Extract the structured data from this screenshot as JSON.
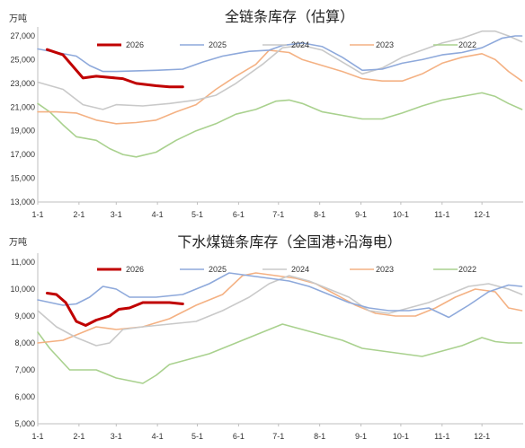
{
  "colors": {
    "2026": "#C00000",
    "2025": "#8EA9DB",
    "2024": "#C9C9C9",
    "2023": "#F4B183",
    "2022": "#A9D18E"
  },
  "chart_data": [
    {
      "type": "line",
      "title": "全链条库存（估算）",
      "unit_label": "万吨",
      "xlabel": "",
      "ylabel": "",
      "ylim": [
        13000,
        27000
      ],
      "xlim": [
        1,
        366
      ],
      "grid": false,
      "legend_position": "top",
      "x_ticks": [
        {
          "label": "1-1",
          "day": 1
        },
        {
          "label": "2-1",
          "day": 32
        },
        {
          "label": "3-1",
          "day": 60
        },
        {
          "label": "4-1",
          "day": 91
        },
        {
          "label": "5-1",
          "day": 121
        },
        {
          "label": "6-1",
          "day": 152
        },
        {
          "label": "7-1",
          "day": 182
        },
        {
          "label": "8-1",
          "day": 213
        },
        {
          "label": "9-1",
          "day": 244
        },
        {
          "label": "10-1",
          "day": 274
        },
        {
          "label": "11-1",
          "day": 305
        },
        {
          "label": "12-1",
          "day": 335
        }
      ],
      "y_ticks": [
        "13,000",
        "15,000",
        "17,000",
        "19,000",
        "21,000",
        "23,000",
        "25,000",
        "27,000"
      ],
      "y_tick_values": [
        13000,
        15000,
        17000,
        19000,
        21000,
        23000,
        25000,
        27000
      ],
      "series": [
        {
          "name": "2026",
          "x": [
            8,
            20,
            35,
            45,
            65,
            75,
            90,
            100,
            110
          ],
          "values": [
            25850,
            25400,
            23450,
            23600,
            23400,
            23000,
            22800,
            22700,
            22700
          ]
        },
        {
          "name": "2025",
          "x": [
            1,
            30,
            40,
            50,
            60,
            90,
            110,
            125,
            140,
            160,
            175,
            185,
            200,
            215,
            230,
            245,
            260,
            275,
            290,
            305,
            320,
            335,
            350,
            360,
            365
          ],
          "values": [
            25900,
            25300,
            24500,
            24000,
            24000,
            24100,
            24200,
            24800,
            25300,
            25700,
            25800,
            26200,
            26400,
            26100,
            25200,
            24100,
            24200,
            24700,
            25000,
            25400,
            25600,
            26000,
            26800,
            27000,
            27000
          ]
        },
        {
          "name": "2024",
          "x": [
            1,
            20,
            35,
            50,
            60,
            80,
            100,
            120,
            135,
            150,
            170,
            185,
            200,
            215,
            230,
            245,
            260,
            275,
            290,
            305,
            320,
            335,
            345,
            355,
            365
          ],
          "values": [
            23100,
            22500,
            21200,
            20800,
            21200,
            21100,
            21300,
            21600,
            22000,
            23000,
            24600,
            26000,
            26200,
            25800,
            24800,
            23800,
            24300,
            25200,
            25800,
            26400,
            26800,
            27400,
            27400,
            27000,
            26500
          ]
        },
        {
          "name": "2023",
          "x": [
            1,
            15,
            30,
            45,
            60,
            75,
            90,
            105,
            120,
            135,
            150,
            165,
            175,
            190,
            200,
            215,
            230,
            245,
            260,
            275,
            290,
            305,
            320,
            335,
            345,
            355,
            365
          ],
          "values": [
            20600,
            20600,
            20500,
            19900,
            19600,
            19700,
            19900,
            20600,
            21200,
            22500,
            23600,
            24600,
            25800,
            25600,
            25000,
            24500,
            24000,
            23400,
            23200,
            23200,
            23800,
            24700,
            25200,
            25500,
            25000,
            24000,
            23200
          ]
        },
        {
          "name": "2022",
          "x": [
            1,
            10,
            20,
            30,
            45,
            55,
            65,
            75,
            90,
            105,
            120,
            135,
            150,
            165,
            180,
            190,
            200,
            215,
            230,
            245,
            260,
            275,
            290,
            305,
            320,
            335,
            345,
            355,
            365
          ],
          "values": [
            21300,
            20600,
            19500,
            18500,
            18200,
            17500,
            17000,
            16800,
            17200,
            18200,
            19000,
            19600,
            20400,
            20800,
            21500,
            21600,
            21300,
            20600,
            20300,
            20000,
            20000,
            20500,
            21100,
            21600,
            21900,
            22200,
            21900,
            21300,
            20800
          ]
        }
      ]
    },
    {
      "type": "line",
      "title": "下水煤链条库存（全国港+沿海电）",
      "unit_label": "万吨",
      "xlabel": "",
      "ylabel": "",
      "ylim": [
        5000,
        11000
      ],
      "xlim": [
        1,
        366
      ],
      "grid": false,
      "legend_position": "top",
      "x_ticks": [
        {
          "label": "1-1",
          "day": 1
        },
        {
          "label": "2-1",
          "day": 32
        },
        {
          "label": "3-1",
          "day": 60
        },
        {
          "label": "4-1",
          "day": 91
        },
        {
          "label": "5-1",
          "day": 121
        },
        {
          "label": "6-1",
          "day": 152
        },
        {
          "label": "7-1",
          "day": 182
        },
        {
          "label": "8-1",
          "day": 213
        },
        {
          "label": "9-1",
          "day": 244
        },
        {
          "label": "10-1",
          "day": 274
        },
        {
          "label": "11-1",
          "day": 305
        },
        {
          "label": "12-1",
          "day": 335
        }
      ],
      "y_ticks": [
        "5,000",
        "6,000",
        "7,000",
        "8,000",
        "9,000",
        "10,000",
        "11,000"
      ],
      "y_tick_values": [
        5000,
        6000,
        7000,
        8000,
        9000,
        10000,
        11000
      ],
      "series": [
        {
          "name": "2026",
          "x": [
            8,
            15,
            22,
            30,
            37,
            45,
            55,
            62,
            70,
            80,
            90,
            100,
            110
          ],
          "values": [
            9850,
            9800,
            9500,
            8800,
            8650,
            8850,
            9000,
            9250,
            9300,
            9500,
            9500,
            9500,
            9450
          ]
        },
        {
          "name": "2025",
          "x": [
            1,
            20,
            30,
            40,
            50,
            60,
            70,
            90,
            110,
            130,
            145,
            160,
            175,
            190,
            205,
            220,
            235,
            250,
            265,
            280,
            295,
            310,
            325,
            340,
            355,
            365
          ],
          "values": [
            9600,
            9400,
            9450,
            9700,
            10100,
            10000,
            9700,
            9700,
            9800,
            10200,
            10600,
            10500,
            10400,
            10300,
            10100,
            9800,
            9500,
            9300,
            9200,
            9200,
            9300,
            8950,
            9400,
            9900,
            10150,
            10100
          ]
        },
        {
          "name": "2024",
          "x": [
            1,
            15,
            30,
            45,
            55,
            65,
            80,
            100,
            120,
            140,
            160,
            175,
            190,
            205,
            220,
            235,
            250,
            265,
            280,
            295,
            310,
            325,
            340,
            355,
            365
          ],
          "values": [
            9200,
            8600,
            8200,
            7900,
            8000,
            8500,
            8600,
            8700,
            8800,
            9200,
            9700,
            10200,
            10500,
            10300,
            10000,
            9700,
            9200,
            9100,
            9300,
            9500,
            9800,
            10100,
            10200,
            10000,
            9800
          ]
        },
        {
          "name": "2023",
          "x": [
            1,
            20,
            35,
            45,
            60,
            80,
            100,
            120,
            140,
            155,
            165,
            180,
            195,
            210,
            225,
            240,
            255,
            270,
            285,
            300,
            315,
            330,
            345,
            355,
            365
          ],
          "values": [
            8000,
            8100,
            8400,
            8600,
            8500,
            8600,
            8900,
            9400,
            9800,
            10500,
            10600,
            10500,
            10400,
            10200,
            9800,
            9400,
            9100,
            9000,
            9000,
            9300,
            9700,
            10000,
            9900,
            9300,
            9200
          ]
        },
        {
          "name": "2022",
          "x": [
            1,
            10,
            25,
            45,
            60,
            70,
            80,
            90,
            100,
            115,
            130,
            145,
            160,
            175,
            185,
            200,
            215,
            230,
            245,
            260,
            275,
            290,
            305,
            320,
            335,
            345,
            355,
            365
          ],
          "values": [
            8400,
            7800,
            7000,
            7000,
            6700,
            6600,
            6500,
            6800,
            7200,
            7400,
            7600,
            7900,
            8200,
            8500,
            8700,
            8500,
            8300,
            8100,
            7800,
            7700,
            7600,
            7500,
            7700,
            7900,
            8200,
            8050,
            8000,
            8000
          ]
        }
      ]
    }
  ]
}
